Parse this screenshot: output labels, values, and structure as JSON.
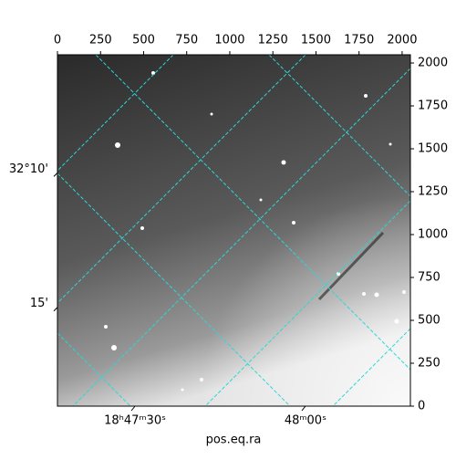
{
  "chart_data": {
    "type": "image",
    "xlabel": "pos.eq.ra",
    "xlim": [
      0,
      2048
    ],
    "ylim": [
      0,
      2048
    ],
    "xticks": [
      0,
      250,
      500,
      750,
      1000,
      1250,
      1500,
      1750,
      2000
    ],
    "yticks": [
      0,
      250,
      500,
      750,
      1000,
      1250,
      1500,
      1750,
      2000
    ],
    "ra_ticks": [
      {
        "value": 450,
        "label": "18ʰ47ᵐ30ˢ"
      },
      {
        "value": 1439,
        "label": "48ᵐ00ˢ"
      }
    ],
    "dec_ticks": [
      {
        "value": 1360,
        "label": "32°10'"
      },
      {
        "value": 576,
        "label": "15'"
      }
    ]
  }
}
